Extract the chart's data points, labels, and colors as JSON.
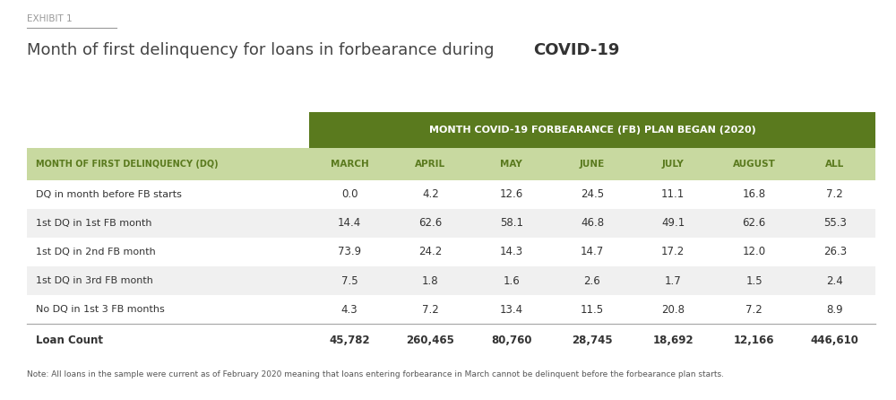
{
  "exhibit_label": "EXHIBIT 1",
  "title_normal": "Month of first delinquency for loans in forbearance during ",
  "title_bold": "COVID-19",
  "header_main": "MONTH COVID-19 FORBEARANCE (FB) PLAN BEGAN (2020)",
  "col_header_row_label": "MONTH OF FIRST DELINQUENCY (DQ)",
  "col_headers": [
    "MARCH",
    "APRIL",
    "MAY",
    "JUNE",
    "JULY",
    "AUGUST",
    "ALL"
  ],
  "row_labels": [
    "DQ in month before FB starts",
    "1st DQ in 1st FB month",
    "1st DQ in 2nd FB month",
    "1st DQ in 3rd FB month",
    "No DQ in 1st 3 FB months"
  ],
  "data": [
    [
      "0.0",
      "4.2",
      "12.6",
      "24.5",
      "11.1",
      "16.8",
      "7.2"
    ],
    [
      "14.4",
      "62.6",
      "58.1",
      "46.8",
      "49.1",
      "62.6",
      "55.3"
    ],
    [
      "73.9",
      "24.2",
      "14.3",
      "14.7",
      "17.2",
      "12.0",
      "26.3"
    ],
    [
      "7.5",
      "1.8",
      "1.6",
      "2.6",
      "1.7",
      "1.5",
      "2.4"
    ],
    [
      "4.3",
      "7.2",
      "13.4",
      "11.5",
      "20.8",
      "7.2",
      "8.9"
    ]
  ],
  "loan_count_label": "Loan Count",
  "loan_counts": [
    "45,782",
    "260,465",
    "80,760",
    "28,745",
    "18,692",
    "12,166",
    "446,610"
  ],
  "note": "Note: All loans in the sample were current as of February 2020 meaning that loans entering forbearance in March cannot be delinquent before the forbearance plan starts.",
  "color_green_dark": "#5a7a1e",
  "color_green_light": "#c8d9a0",
  "color_row_alt": "#f0f0f0",
  "color_white": "#ffffff",
  "color_text_dark": "#333333",
  "color_text_header_green": "#ffffff",
  "color_exhibit": "#999999",
  "color_border": "#aaaaaa"
}
